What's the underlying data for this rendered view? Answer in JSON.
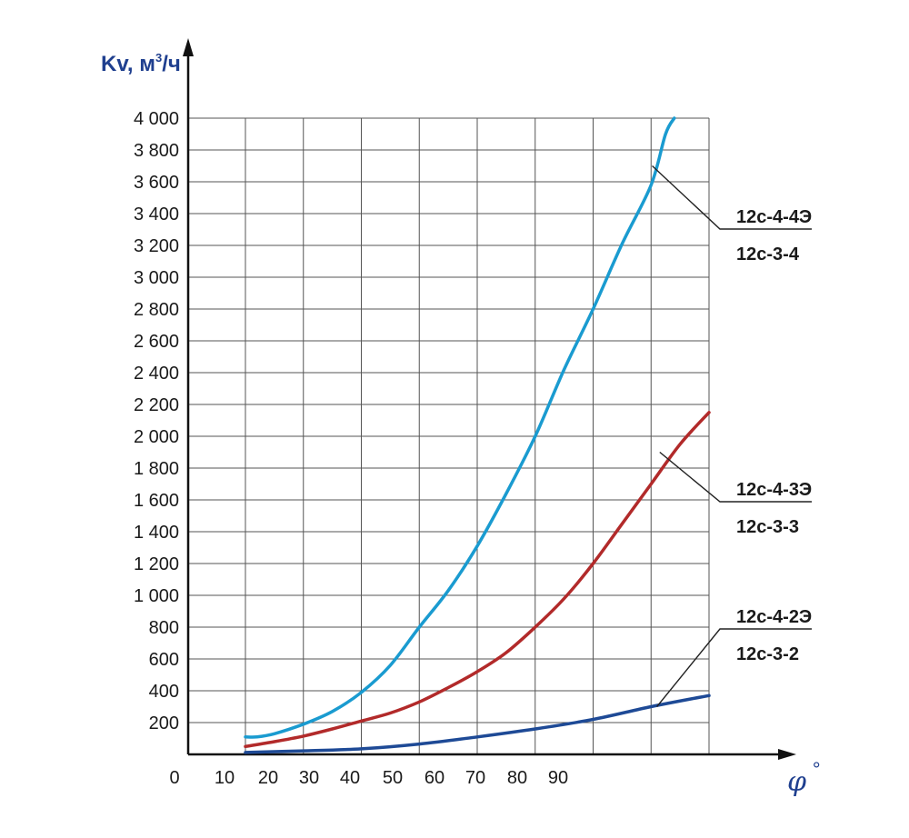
{
  "chart_data": {
    "type": "line",
    "ylabel": "Kv, м",
    "ylabel_superscript": "3",
    "ylabel_unit": "/ч",
    "xlabel": "φ",
    "xlabel_degree": "°",
    "x_ticks": [
      "0",
      "10",
      "20",
      "30",
      "40",
      "50",
      "60",
      "70",
      "80",
      "90"
    ],
    "y_ticks": [
      "200",
      "400",
      "600",
      "800",
      "1 000",
      "1 200",
      "1 400",
      "1 600",
      "1 800",
      "2 000",
      "2 200",
      "2 400",
      "2 600",
      "2 800",
      "3 000",
      "3 200",
      "3 400",
      "3 600",
      "3 800",
      "4 000"
    ],
    "ylim": [
      0,
      4000
    ],
    "grid": true,
    "series": [
      {
        "labels": [
          "12с-4-4Э",
          "12с-3-4"
        ],
        "color": "#1a9bd0",
        "points": [
          [
            10,
            110
          ],
          [
            12,
            110
          ],
          [
            15,
            130
          ],
          [
            20,
            190
          ],
          [
            25,
            270
          ],
          [
            30,
            390
          ],
          [
            35,
            560
          ],
          [
            40,
            800
          ],
          [
            45,
            1030
          ],
          [
            50,
            1310
          ],
          [
            55,
            1640
          ],
          [
            60,
            2000
          ],
          [
            65,
            2420
          ],
          [
            70,
            2800
          ],
          [
            75,
            3210
          ],
          [
            80,
            3580
          ],
          [
            82.5,
            3900
          ],
          [
            84,
            4000
          ]
        ]
      },
      {
        "labels": [
          "12с-4-3Э",
          "12с-3-3"
        ],
        "color": "#b22a2a",
        "points": [
          [
            10,
            50
          ],
          [
            15,
            80
          ],
          [
            20,
            115
          ],
          [
            25,
            160
          ],
          [
            30,
            210
          ],
          [
            35,
            260
          ],
          [
            40,
            330
          ],
          [
            45,
            420
          ],
          [
            50,
            520
          ],
          [
            55,
            640
          ],
          [
            60,
            800
          ],
          [
            65,
            980
          ],
          [
            70,
            1200
          ],
          [
            75,
            1450
          ],
          [
            80,
            1700
          ],
          [
            85,
            1950
          ],
          [
            90,
            2150
          ]
        ]
      },
      {
        "labels": [
          "12с-4-2Э",
          "12с-3-2"
        ],
        "color": "#1e4a96",
        "points": [
          [
            10,
            12
          ],
          [
            20,
            22
          ],
          [
            30,
            35
          ],
          [
            40,
            65
          ],
          [
            50,
            110
          ],
          [
            60,
            160
          ],
          [
            70,
            220
          ],
          [
            80,
            300
          ],
          [
            90,
            370
          ]
        ]
      }
    ]
  }
}
